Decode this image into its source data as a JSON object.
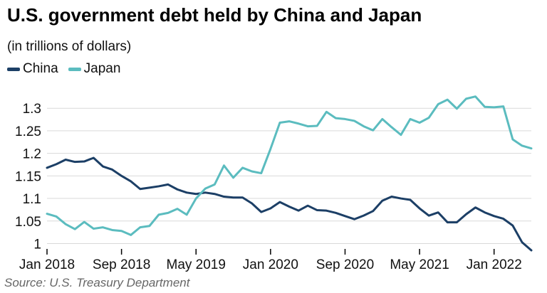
{
  "colors": {
    "china": "#1c3f66",
    "japan": "#5bbcbf",
    "grid": "#d9d9d9",
    "axis": "#000000"
  },
  "chart_data": {
    "type": "line",
    "title": "U.S. government debt held by China and Japan",
    "subtitle": "(in trillions of dollars)",
    "source": "Source: U.S. Treasury Department",
    "x_tick_labels": [
      "Jan 2018",
      "Sep 2018",
      "May 2019",
      "Jan 2020",
      "Sep 2020",
      "May 2021",
      "Jan 2022"
    ],
    "x_tick_months": [
      0,
      8,
      16,
      24,
      32,
      40,
      48
    ],
    "y_ticks": [
      1,
      1.05,
      1.1,
      1.15,
      1.2,
      1.25,
      1.3
    ],
    "y_tick_labels": [
      "1",
      "1.05",
      "1.1",
      "1.15",
      "1.2",
      "1.25",
      "1.3"
    ],
    "ylim": [
      0.985,
      1.335
    ],
    "xlim": [
      0,
      52
    ],
    "grid": "horizontal",
    "legend_position": "top-left",
    "series": [
      {
        "name": "China",
        "color": "#1c3f66",
        "values": [
          1.168,
          1.176,
          1.186,
          1.181,
          1.182,
          1.19,
          1.171,
          1.164,
          1.15,
          1.138,
          1.121,
          1.124,
          1.127,
          1.131,
          1.12,
          1.113,
          1.11,
          1.113,
          1.11,
          1.104,
          1.102,
          1.102,
          1.089,
          1.07,
          1.078,
          1.092,
          1.082,
          1.073,
          1.084,
          1.074,
          1.073,
          1.068,
          1.061,
          1.054,
          1.062,
          1.072,
          1.095,
          1.104,
          1.1,
          1.097,
          1.078,
          1.062,
          1.069,
          1.047,
          1.047,
          1.065,
          1.08,
          1.069,
          1.061,
          1.055,
          1.04,
          1.003,
          0.985
        ]
      },
      {
        "name": "Japan",
        "color": "#5bbcbf",
        "values": [
          1.066,
          1.06,
          1.043,
          1.032,
          1.048,
          1.033,
          1.036,
          1.03,
          1.028,
          1.019,
          1.036,
          1.039,
          1.064,
          1.068,
          1.077,
          1.064,
          1.1,
          1.122,
          1.131,
          1.173,
          1.146,
          1.168,
          1.16,
          1.156,
          1.21,
          1.268,
          1.271,
          1.266,
          1.26,
          1.261,
          1.292,
          1.278,
          1.276,
          1.272,
          1.26,
          1.251,
          1.276,
          1.258,
          1.241,
          1.276,
          1.268,
          1.279,
          1.309,
          1.319,
          1.299,
          1.321,
          1.326,
          1.303,
          1.302,
          1.304,
          1.231,
          1.217,
          1.211
        ]
      }
    ]
  }
}
